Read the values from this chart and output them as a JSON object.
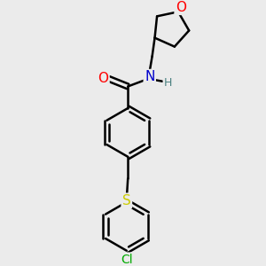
{
  "bg_color": "#ebebeb",
  "bond_color": "#000000",
  "bond_width": 1.8,
  "atom_colors": {
    "O_carbonyl": "#ff0000",
    "O_ring": "#ff0000",
    "N": "#0000cc",
    "S": "#cccc00",
    "Cl": "#00aa00",
    "H": "#4a8080",
    "C": "#000000"
  },
  "font_size": 10,
  "fig_width": 3.0,
  "fig_height": 3.0,
  "dpi": 100
}
